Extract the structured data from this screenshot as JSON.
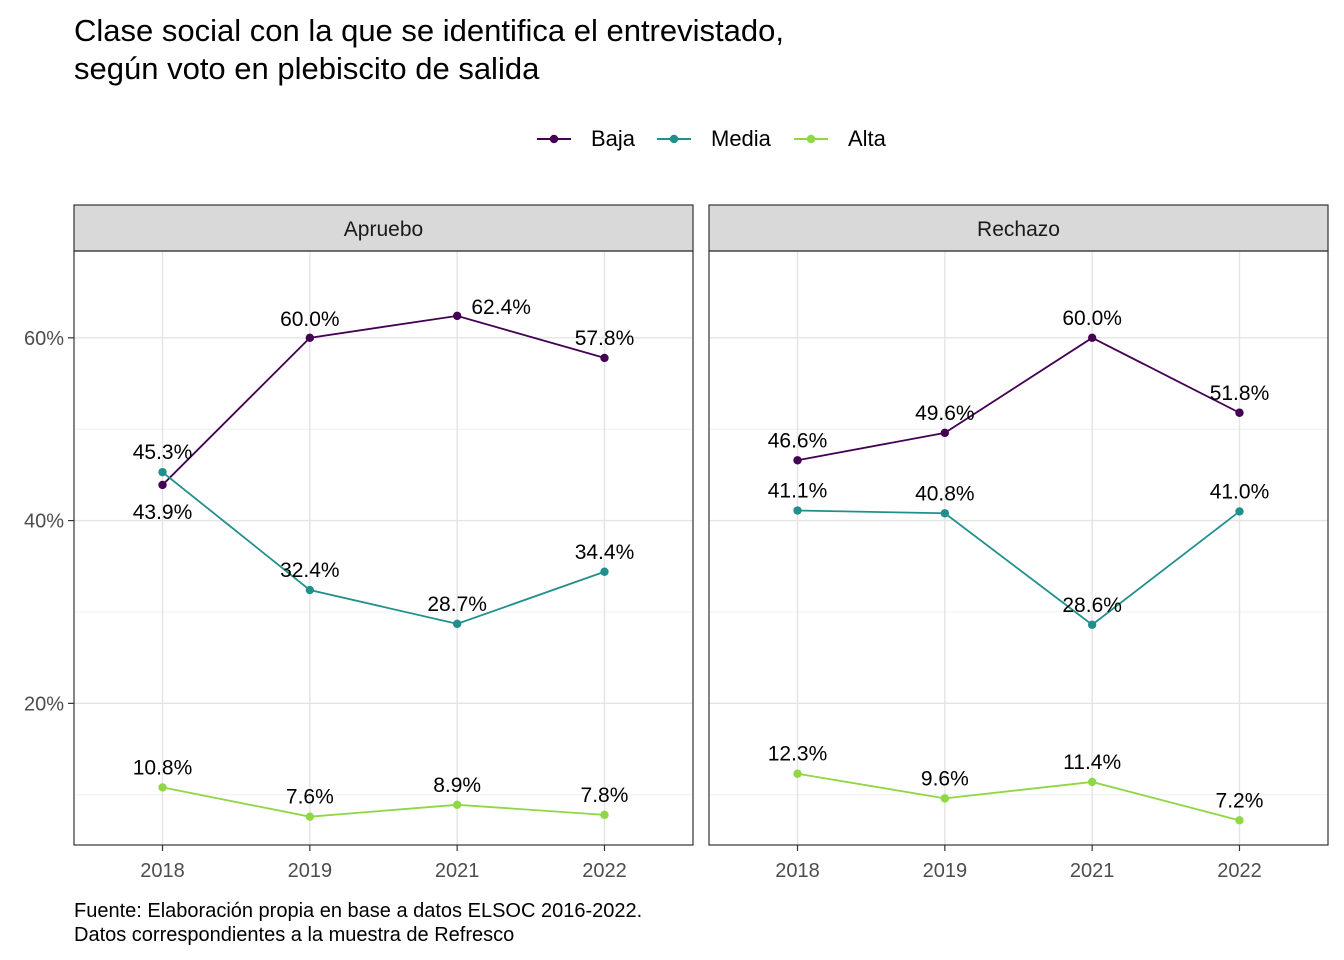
{
  "title": [
    "Clase social con la que se identifica el entrevistado,",
    "según voto en plebiscito de salida"
  ],
  "caption": [
    "Fuente: Elaboración propia en base a datos ELSOC 2016-2022.",
    "Datos correspondientes a la muestra de Refresco"
  ],
  "chart_data": {
    "type": "line",
    "facet_by": "voto",
    "legend_position": "top",
    "grid": true,
    "x": [
      "2018",
      "2019",
      "2021",
      "2022"
    ],
    "ylim": [
      0.045,
      0.695
    ],
    "y_ticks": [
      {
        "value": 0.2,
        "label": "20%"
      },
      {
        "value": 0.4,
        "label": "40%"
      },
      {
        "value": 0.6,
        "label": "60%"
      }
    ],
    "legend": [
      {
        "name": "Baja",
        "color": "#440154"
      },
      {
        "name": "Media",
        "color": "#21908C"
      },
      {
        "name": "Alta",
        "color": "#8FD744"
      }
    ],
    "panels": [
      {
        "label": "Apruebo",
        "series": [
          {
            "name": "Baja",
            "color": "#440154",
            "values": [
              0.439,
              0.6,
              0.624,
              0.578
            ],
            "labels": [
              "43.9%",
              "60.0%",
              "62.4%",
              "57.8%"
            ],
            "label_dx": [
              0,
              0,
              44,
              0
            ],
            "label_dy": [
              34,
              -12,
              -2,
              -13
            ]
          },
          {
            "name": "Media",
            "color": "#21908C",
            "values": [
              0.453,
              0.324,
              0.287,
              0.344
            ],
            "labels": [
              "45.3%",
              "32.4%",
              "28.7%",
              "34.4%"
            ],
            "label_dx": [
              0,
              0,
              0,
              0
            ],
            "label_dy": [
              -13,
              -13,
              -13,
              -13
            ]
          },
          {
            "name": "Alta",
            "color": "#8FD744",
            "values": [
              0.108,
              0.076,
              0.089,
              0.078
            ],
            "labels": [
              "10.8%",
              "7.6%",
              "8.9%",
              "7.8%"
            ],
            "label_dx": [
              0,
              0,
              0,
              0
            ],
            "label_dy": [
              -13,
              -13,
              -13,
              -13
            ]
          }
        ]
      },
      {
        "label": "Rechazo",
        "series": [
          {
            "name": "Baja",
            "color": "#440154",
            "values": [
              0.466,
              0.496,
              0.6,
              0.518
            ],
            "labels": [
              "46.6%",
              "49.6%",
              "60.0%",
              "51.8%"
            ],
            "label_dx": [
              0,
              0,
              0,
              0
            ],
            "label_dy": [
              -13,
              -13,
              -13,
              -13
            ]
          },
          {
            "name": "Media",
            "color": "#21908C",
            "values": [
              0.411,
              0.408,
              0.286,
              0.41
            ],
            "labels": [
              "41.1%",
              "40.8%",
              "28.6%",
              "41.0%"
            ],
            "label_dx": [
              0,
              0,
              0,
              0
            ],
            "label_dy": [
              -13,
              -13,
              -13,
              -13
            ]
          },
          {
            "name": "Alta",
            "color": "#8FD744",
            "values": [
              0.123,
              0.096,
              0.114,
              0.072
            ],
            "labels": [
              "12.3%",
              "9.6%",
              "11.4%",
              "7.2%"
            ],
            "label_dx": [
              0,
              0,
              0,
              0
            ],
            "label_dy": [
              -13,
              -13,
              -13,
              -13
            ]
          }
        ]
      }
    ]
  }
}
